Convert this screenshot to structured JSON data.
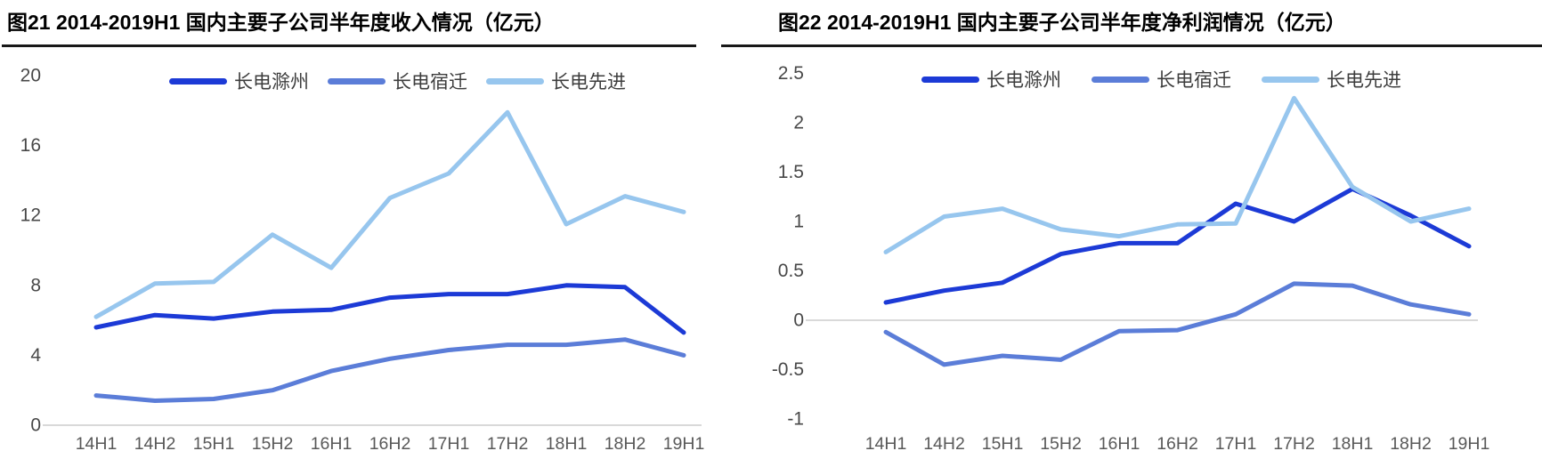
{
  "chart_data": [
    {
      "type": "line",
      "title": "图21 2014-2019H1 国内主要子公司半年度收入情况（亿元）",
      "xlabel": "",
      "ylabel": "",
      "categories": [
        "14H1",
        "14H2",
        "15H1",
        "15H2",
        "16H1",
        "16H2",
        "17H1",
        "17H2",
        "18H1",
        "18H2",
        "19H1"
      ],
      "yticks": [
        "0",
        "4",
        "8",
        "12",
        "16",
        "20"
      ],
      "ylim": [
        0,
        20
      ],
      "grid": false,
      "legend_position": "top",
      "series": [
        {
          "name": "长电滁州",
          "color": "#1c3ad6",
          "values": [
            5.6,
            6.3,
            6.1,
            6.5,
            6.6,
            7.3,
            7.5,
            7.5,
            8.0,
            7.9,
            5.3
          ]
        },
        {
          "name": "长电宿迁",
          "color": "#5b7dd8",
          "values": [
            1.7,
            1.4,
            1.5,
            2.0,
            3.1,
            3.8,
            4.3,
            4.6,
            4.6,
            4.9,
            4.0
          ]
        },
        {
          "name": "长电先进",
          "color": "#97c6ee",
          "values": [
            6.2,
            8.1,
            8.2,
            10.9,
            9.0,
            13.0,
            14.4,
            17.9,
            11.5,
            13.1,
            12.2
          ]
        }
      ]
    },
    {
      "type": "line",
      "title": "图22 2014-2019H1 国内主要子公司半年度净利润情况（亿元）",
      "xlabel": "",
      "ylabel": "",
      "categories": [
        "14H1",
        "14H2",
        "15H1",
        "15H2",
        "16H1",
        "16H2",
        "17H1",
        "17H2",
        "18H1",
        "18H2",
        "19H1"
      ],
      "yticks": [
        "-1",
        "-0.5",
        "0",
        "0.5",
        "1",
        "1.5",
        "2",
        "2.5"
      ],
      "ylim": [
        -1,
        2.5
      ],
      "grid": false,
      "legend_position": "top",
      "series": [
        {
          "name": "长电滁州",
          "color": "#1c3ad6",
          "values": [
            0.18,
            0.3,
            0.38,
            0.67,
            0.78,
            0.78,
            1.18,
            1.0,
            1.33,
            1.06,
            0.75
          ]
        },
        {
          "name": "长电宿迁",
          "color": "#5b7dd8",
          "values": [
            -0.12,
            -0.45,
            -0.36,
            -0.4,
            -0.11,
            -0.1,
            0.06,
            0.37,
            0.35,
            0.16,
            0.06
          ]
        },
        {
          "name": "长电先进",
          "color": "#97c6ee",
          "values": [
            0.69,
            1.05,
            1.13,
            0.92,
            0.85,
            0.97,
            0.98,
            2.25,
            1.35,
            1.0,
            1.13
          ]
        }
      ]
    }
  ]
}
